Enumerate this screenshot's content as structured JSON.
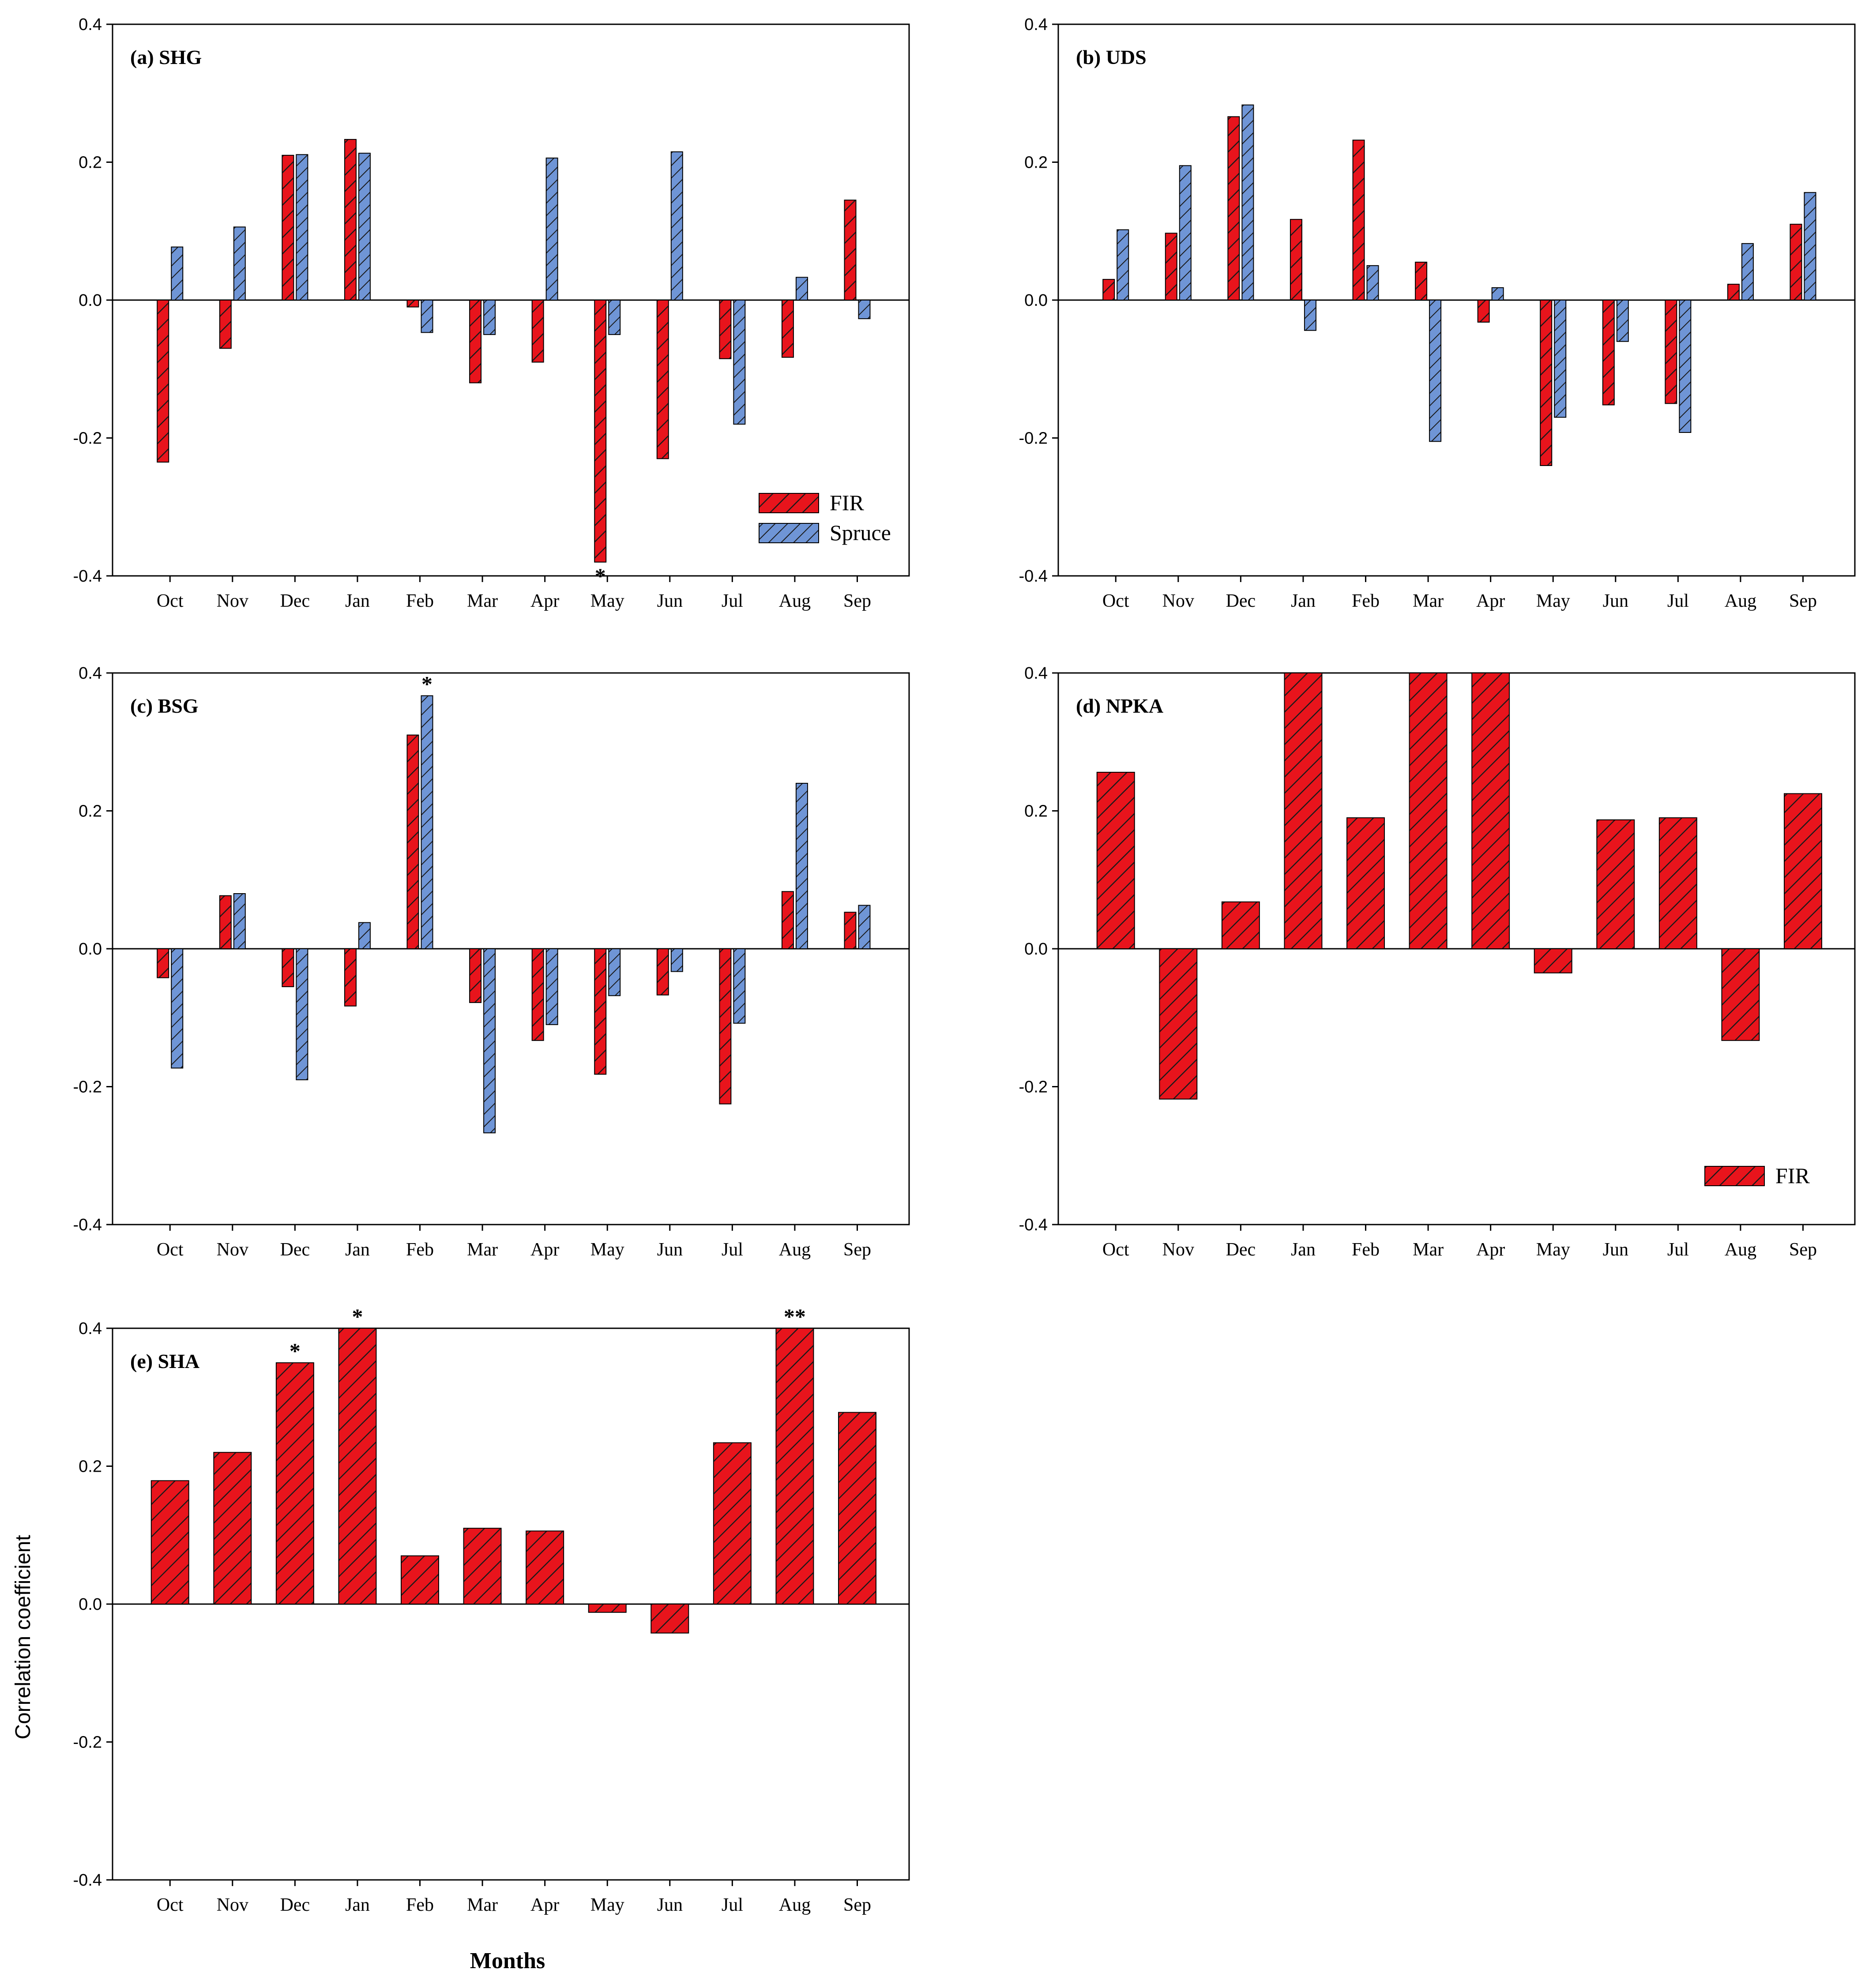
{
  "figure": {
    "ylabel": "Correlation coefficient",
    "xlabel": "Months"
  },
  "colors": {
    "fir": "#e8141c",
    "spruce": "#6f95d6",
    "hatch": "#1a1a1a"
  },
  "chart_data": [
    {
      "type": "bar",
      "panel": "a",
      "title": "(a) SHG",
      "categories": [
        "Oct",
        "Nov",
        "Dec",
        "Jan",
        "Feb",
        "Mar",
        "Apr",
        "May",
        "Jun",
        "Jul",
        "Aug",
        "Sep"
      ],
      "series": [
        {
          "name": "FIR",
          "values": [
            -0.235,
            -0.07,
            0.21,
            0.233,
            -0.01,
            -0.12,
            -0.09,
            -0.38,
            -0.23,
            -0.085,
            -0.083,
            0.145
          ]
        },
        {
          "name": "Spruce",
          "values": [
            0.077,
            0.106,
            0.211,
            0.213,
            -0.047,
            -0.05,
            0.206,
            -0.05,
            0.215,
            -0.18,
            0.033,
            -0.027
          ]
        }
      ],
      "stars": [
        {
          "category": "May",
          "text": "*",
          "position": "below"
        }
      ],
      "legend": {
        "entries": [
          "FIR",
          "Spruce"
        ],
        "placement": "bottom-right"
      },
      "ylim": [
        -0.4,
        0.4
      ],
      "yticks": [
        "0.4",
        "0.2",
        "0.0",
        "-0.2",
        "-0.4"
      ]
    },
    {
      "type": "bar",
      "panel": "b",
      "title": "(b) UDS",
      "categories": [
        "Oct",
        "Nov",
        "Dec",
        "Jan",
        "Feb",
        "Mar",
        "Apr",
        "May",
        "Jun",
        "Jul",
        "Aug",
        "Sep"
      ],
      "series": [
        {
          "name": "FIR",
          "values": [
            0.03,
            0.097,
            0.266,
            0.117,
            0.232,
            0.055,
            -0.032,
            -0.24,
            -0.152,
            -0.15,
            0.023,
            0.11
          ]
        },
        {
          "name": "Spruce",
          "values": [
            0.102,
            0.195,
            0.283,
            -0.044,
            0.05,
            -0.205,
            0.018,
            -0.17,
            -0.06,
            -0.192,
            0.082,
            0.156
          ]
        }
      ],
      "stars": [],
      "ylim": [
        -0.4,
        0.4
      ],
      "yticks": [
        "0.4",
        "0.2",
        "0.0",
        "-0.2",
        "-0.4"
      ]
    },
    {
      "type": "bar",
      "panel": "c",
      "title": "(c) BSG",
      "categories": [
        "Oct",
        "Nov",
        "Dec",
        "Jan",
        "Feb",
        "Mar",
        "Apr",
        "May",
        "Jun",
        "Jul",
        "Aug",
        "Sep"
      ],
      "series": [
        {
          "name": "FIR",
          "values": [
            -0.042,
            0.077,
            -0.055,
            -0.083,
            0.31,
            -0.078,
            -0.133,
            -0.182,
            -0.067,
            -0.225,
            0.083,
            0.053
          ]
        },
        {
          "name": "Spruce",
          "values": [
            -0.173,
            0.08,
            -0.19,
            0.038,
            0.367,
            -0.267,
            -0.11,
            -0.068,
            -0.033,
            -0.108,
            0.24,
            0.063
          ]
        }
      ],
      "stars": [
        {
          "category": "Feb",
          "text": "*",
          "position": "above"
        }
      ],
      "ylim": [
        -0.4,
        0.4
      ],
      "yticks": [
        "0.4",
        "0.2",
        "0.0",
        "-0.2",
        "-0.4"
      ]
    },
    {
      "type": "bar",
      "panel": "d",
      "title": "(d) NPKA",
      "categories": [
        "Oct",
        "Nov",
        "Dec",
        "Jan",
        "Feb",
        "Mar",
        "Apr",
        "May",
        "Jun",
        "Jul",
        "Aug",
        "Sep"
      ],
      "series": [
        {
          "name": "FIR",
          "values": [
            0.256,
            -0.218,
            0.068,
            0.4,
            0.19,
            0.4,
            0.4,
            -0.035,
            0.187,
            0.19,
            -0.133,
            0.225
          ]
        }
      ],
      "stars": [],
      "legend": {
        "entries": [
          "FIR"
        ],
        "placement": "bottom-right"
      },
      "ylim": [
        -0.4,
        0.4
      ],
      "yticks": [
        "0.4",
        "0.2",
        "0.0",
        "-0.2",
        "-0.4"
      ]
    },
    {
      "type": "bar",
      "panel": "e",
      "title": "(e) SHA",
      "categories": [
        "Oct",
        "Nov",
        "Dec",
        "Jan",
        "Feb",
        "Mar",
        "Apr",
        "May",
        "Jun",
        "Jul",
        "Aug",
        "Sep"
      ],
      "series": [
        {
          "name": "FIR",
          "values": [
            0.179,
            0.22,
            0.35,
            0.4,
            0.07,
            0.11,
            0.106,
            -0.012,
            -0.042,
            0.234,
            0.4,
            0.278
          ]
        }
      ],
      "stars": [
        {
          "category": "Dec",
          "text": "*",
          "position": "above"
        },
        {
          "category": "Jan",
          "text": "*",
          "position": "above"
        },
        {
          "category": "Aug",
          "text": "**",
          "position": "above"
        }
      ],
      "ylim": [
        -0.4,
        0.4
      ],
      "yticks": [
        "0.4",
        "0.2",
        "0.0",
        "-0.2",
        "-0.4"
      ]
    }
  ]
}
